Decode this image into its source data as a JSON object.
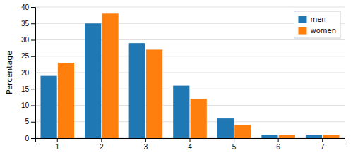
{
  "chart_data": {
    "type": "bar",
    "categories": [
      1,
      2,
      3,
      4,
      5,
      6,
      7
    ],
    "series": [
      {
        "name": "men",
        "values": [
          19,
          35,
          29,
          16,
          6,
          1,
          1
        ]
      },
      {
        "name": "women",
        "values": [
          23,
          38,
          27,
          12,
          4,
          1,
          1
        ]
      }
    ],
    "ylabel": "Percentage",
    "ylim": [
      0,
      40
    ],
    "yticks": [
      0,
      5,
      10,
      15,
      20,
      25,
      30,
      35,
      40
    ],
    "grid": true,
    "legend": "upper-right"
  }
}
